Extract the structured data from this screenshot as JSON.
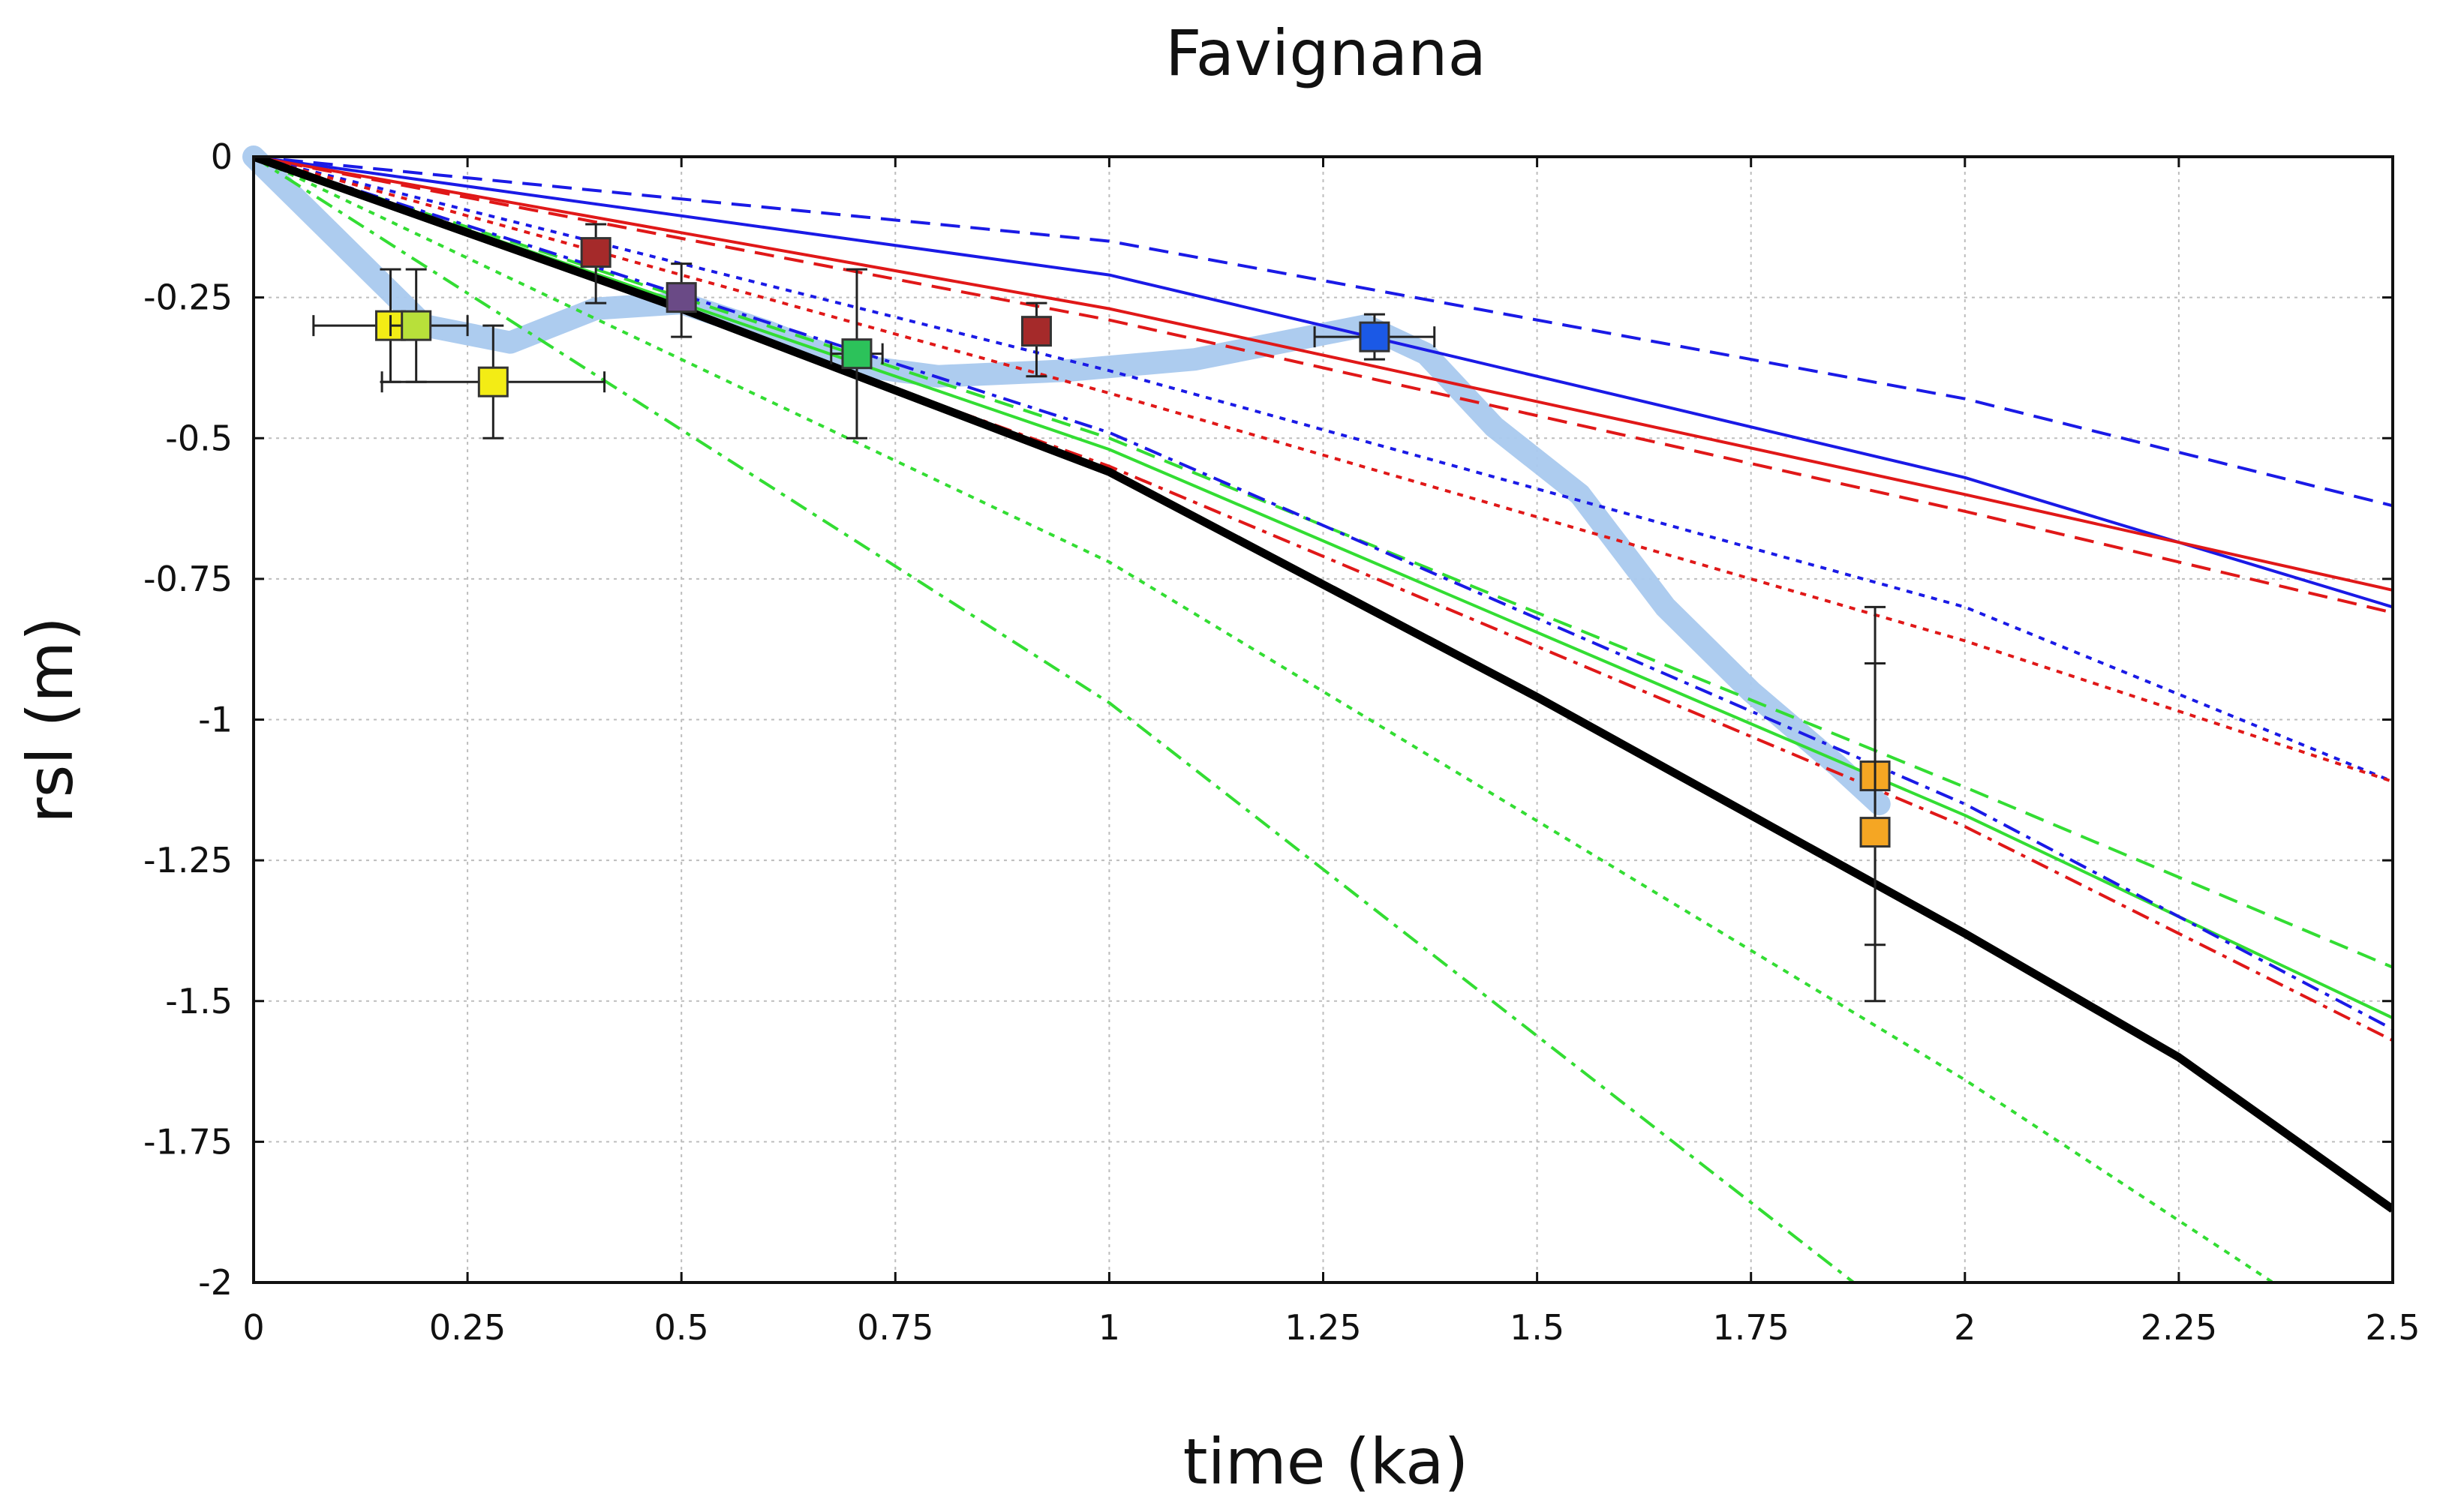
{
  "chart_data": {
    "type": "line",
    "title": "Favignana",
    "xlabel": "time (ka)",
    "ylabel": "rsl (m)",
    "xlim": [
      0,
      2.5
    ],
    "ylim": [
      -2,
      0
    ],
    "grid": true,
    "xticks": [
      0,
      0.25,
      0.5,
      0.75,
      1,
      1.25,
      1.5,
      1.75,
      2,
      2.25,
      2.5
    ],
    "xtick_labels": [
      "0",
      "0.25",
      "0.5",
      "0.75",
      "1",
      "1.25",
      "1.5",
      "1.75",
      "2",
      "2.25",
      "2.5"
    ],
    "yticks": [
      0,
      -0.25,
      -0.5,
      -0.75,
      -1,
      -1.25,
      -1.5,
      -1.75,
      -2
    ],
    "ytick_labels": [
      "0",
      "-0.25",
      "-0.5",
      "-0.75",
      "-1",
      "-1.25",
      "-1.5",
      "-1.75",
      "-2"
    ],
    "series": [
      {
        "name": "blue-dashed",
        "color": "#1a1ae6",
        "dash": "dashed",
        "width": 2,
        "points": [
          [
            0,
            0
          ],
          [
            1,
            -0.15
          ],
          [
            2,
            -0.43
          ],
          [
            2.5,
            -0.62
          ]
        ]
      },
      {
        "name": "blue-solid",
        "color": "#1a1ae6",
        "dash": "solid",
        "width": 2,
        "points": [
          [
            0,
            0
          ],
          [
            1,
            -0.21
          ],
          [
            2,
            -0.57
          ],
          [
            2.5,
            -0.8
          ]
        ]
      },
      {
        "name": "red-solid",
        "color": "#e01818",
        "dash": "solid",
        "width": 2,
        "points": [
          [
            0,
            0
          ],
          [
            1,
            -0.27
          ],
          [
            2,
            -0.6
          ],
          [
            2.5,
            -0.77
          ]
        ]
      },
      {
        "name": "red-dashed",
        "color": "#e01818",
        "dash": "dashed",
        "width": 2,
        "points": [
          [
            0,
            0
          ],
          [
            1,
            -0.29
          ],
          [
            2,
            -0.63
          ],
          [
            2.5,
            -0.81
          ]
        ]
      },
      {
        "name": "blue-dotted",
        "color": "#1a1ae6",
        "dash": "dotted",
        "width": 2,
        "points": [
          [
            0,
            0
          ],
          [
            1,
            -0.38
          ],
          [
            2,
            -0.8
          ],
          [
            2.5,
            -1.11
          ]
        ]
      },
      {
        "name": "red-dotted",
        "color": "#e01818",
        "dash": "dotted",
        "width": 2,
        "points": [
          [
            0,
            0
          ],
          [
            1,
            -0.42
          ],
          [
            2,
            -0.86
          ],
          [
            2.5,
            -1.11
          ]
        ]
      },
      {
        "name": "green-dashed",
        "color": "#33dd33",
        "dash": "dashed",
        "width": 2,
        "points": [
          [
            0,
            0
          ],
          [
            1,
            -0.5
          ],
          [
            2,
            -1.12
          ],
          [
            2.5,
            -1.44
          ]
        ]
      },
      {
        "name": "green-solid",
        "color": "#33dd33",
        "dash": "solid",
        "width": 2,
        "points": [
          [
            0,
            0
          ],
          [
            1,
            -0.52
          ],
          [
            2,
            -1.17
          ],
          [
            2.5,
            -1.53
          ]
        ]
      },
      {
        "name": "blue-dashdot",
        "color": "#1a1ae6",
        "dash": "dashdot",
        "width": 2,
        "points": [
          [
            0,
            0
          ],
          [
            1,
            -0.49
          ],
          [
            2,
            -1.15
          ],
          [
            2.5,
            -1.55
          ]
        ]
      },
      {
        "name": "red-dashdot",
        "color": "#e01818",
        "dash": "dashdot",
        "width": 2,
        "points": [
          [
            0,
            0
          ],
          [
            1,
            -0.55
          ],
          [
            2,
            -1.19
          ],
          [
            2.5,
            -1.57
          ]
        ]
      },
      {
        "name": "green-dotted-1",
        "color": "#33dd33",
        "dash": "dotted",
        "width": 2,
        "points": [
          [
            0,
            0
          ],
          [
            1,
            -0.72
          ],
          [
            2,
            -1.64
          ],
          [
            2.36,
            -2
          ]
        ]
      },
      {
        "name": "green-dashdot",
        "color": "#33dd33",
        "dash": "dashdot",
        "width": 2,
        "points": [
          [
            0,
            0
          ],
          [
            1,
            -0.97
          ],
          [
            1.87,
            -2
          ]
        ]
      },
      {
        "name": "black-solid-thick",
        "color": "#000000",
        "dash": "solid",
        "width": 5,
        "points": [
          [
            0,
            0
          ],
          [
            0.5,
            -0.27
          ],
          [
            1,
            -0.56
          ],
          [
            1.5,
            -0.96
          ],
          [
            2,
            -1.38
          ],
          [
            2.25,
            -1.6
          ],
          [
            2.5,
            -1.87
          ]
        ]
      }
    ],
    "band": {
      "name": "observation-band",
      "color": "#a9c9ee",
      "points": [
        [
          0,
          0
        ],
        [
          0.1,
          -0.15
        ],
        [
          0.2,
          -0.3
        ],
        [
          0.3,
          -0.33
        ],
        [
          0.4,
          -0.27
        ],
        [
          0.5,
          -0.26
        ],
        [
          0.6,
          -0.31
        ],
        [
          0.7,
          -0.37
        ],
        [
          0.8,
          -0.39
        ],
        [
          0.95,
          -0.38
        ],
        [
          1.1,
          -0.36
        ],
        [
          1.2,
          -0.33
        ],
        [
          1.3,
          -0.3
        ],
        [
          1.37,
          -0.35
        ],
        [
          1.45,
          -0.48
        ],
        [
          1.55,
          -0.6
        ],
        [
          1.65,
          -0.8
        ],
        [
          1.75,
          -0.95
        ],
        [
          1.85,
          -1.08
        ],
        [
          1.9,
          -1.15
        ]
      ]
    },
    "markers": [
      {
        "x": 0.16,
        "y": -0.3,
        "color": "#f3ec15",
        "xerr": [
          0.09,
          0.02
        ],
        "yerr": [
          0.1,
          0.1
        ]
      },
      {
        "x": 0.19,
        "y": -0.3,
        "color": "#b8e03a",
        "xerr": [
          0.03,
          0.06
        ],
        "yerr": [
          0.1,
          0.1
        ]
      },
      {
        "x": 0.28,
        "y": -0.4,
        "color": "#f3ec15",
        "xerr": [
          0.13,
          0.13
        ],
        "yerr": [
          0.1,
          0.1
        ]
      },
      {
        "x": 0.4,
        "y": -0.17,
        "color": "#a52a2a",
        "xerr": [
          0,
          0
        ],
        "yerr": [
          0.09,
          0.05
        ]
      },
      {
        "x": 0.5,
        "y": -0.25,
        "color": "#6a4a86",
        "xerr": [
          0,
          0
        ],
        "yerr": [
          0.07,
          0.06
        ]
      },
      {
        "x": 0.705,
        "y": -0.35,
        "color": "#2cc25a",
        "xerr": [
          0.03,
          0.03
        ],
        "yerr": [
          0.15,
          0.15
        ]
      },
      {
        "x": 0.915,
        "y": -0.31,
        "color": "#a52a2a",
        "xerr": [
          0,
          0
        ],
        "yerr": [
          0.08,
          0.05
        ]
      },
      {
        "x": 1.31,
        "y": -0.32,
        "color": "#1b59e6",
        "xerr": [
          0.07,
          0.07
        ],
        "yerr": [
          0.04,
          0.04
        ]
      },
      {
        "x": 1.895,
        "y": -1.1,
        "color": "#f5a623",
        "xerr": [
          0,
          0
        ],
        "yerr": [
          0.3,
          0.3
        ]
      },
      {
        "x": 1.895,
        "y": -1.2,
        "color": "#f5a623",
        "xerr": [
          0,
          0
        ],
        "yerr": [
          0.3,
          0.3
        ]
      }
    ]
  }
}
